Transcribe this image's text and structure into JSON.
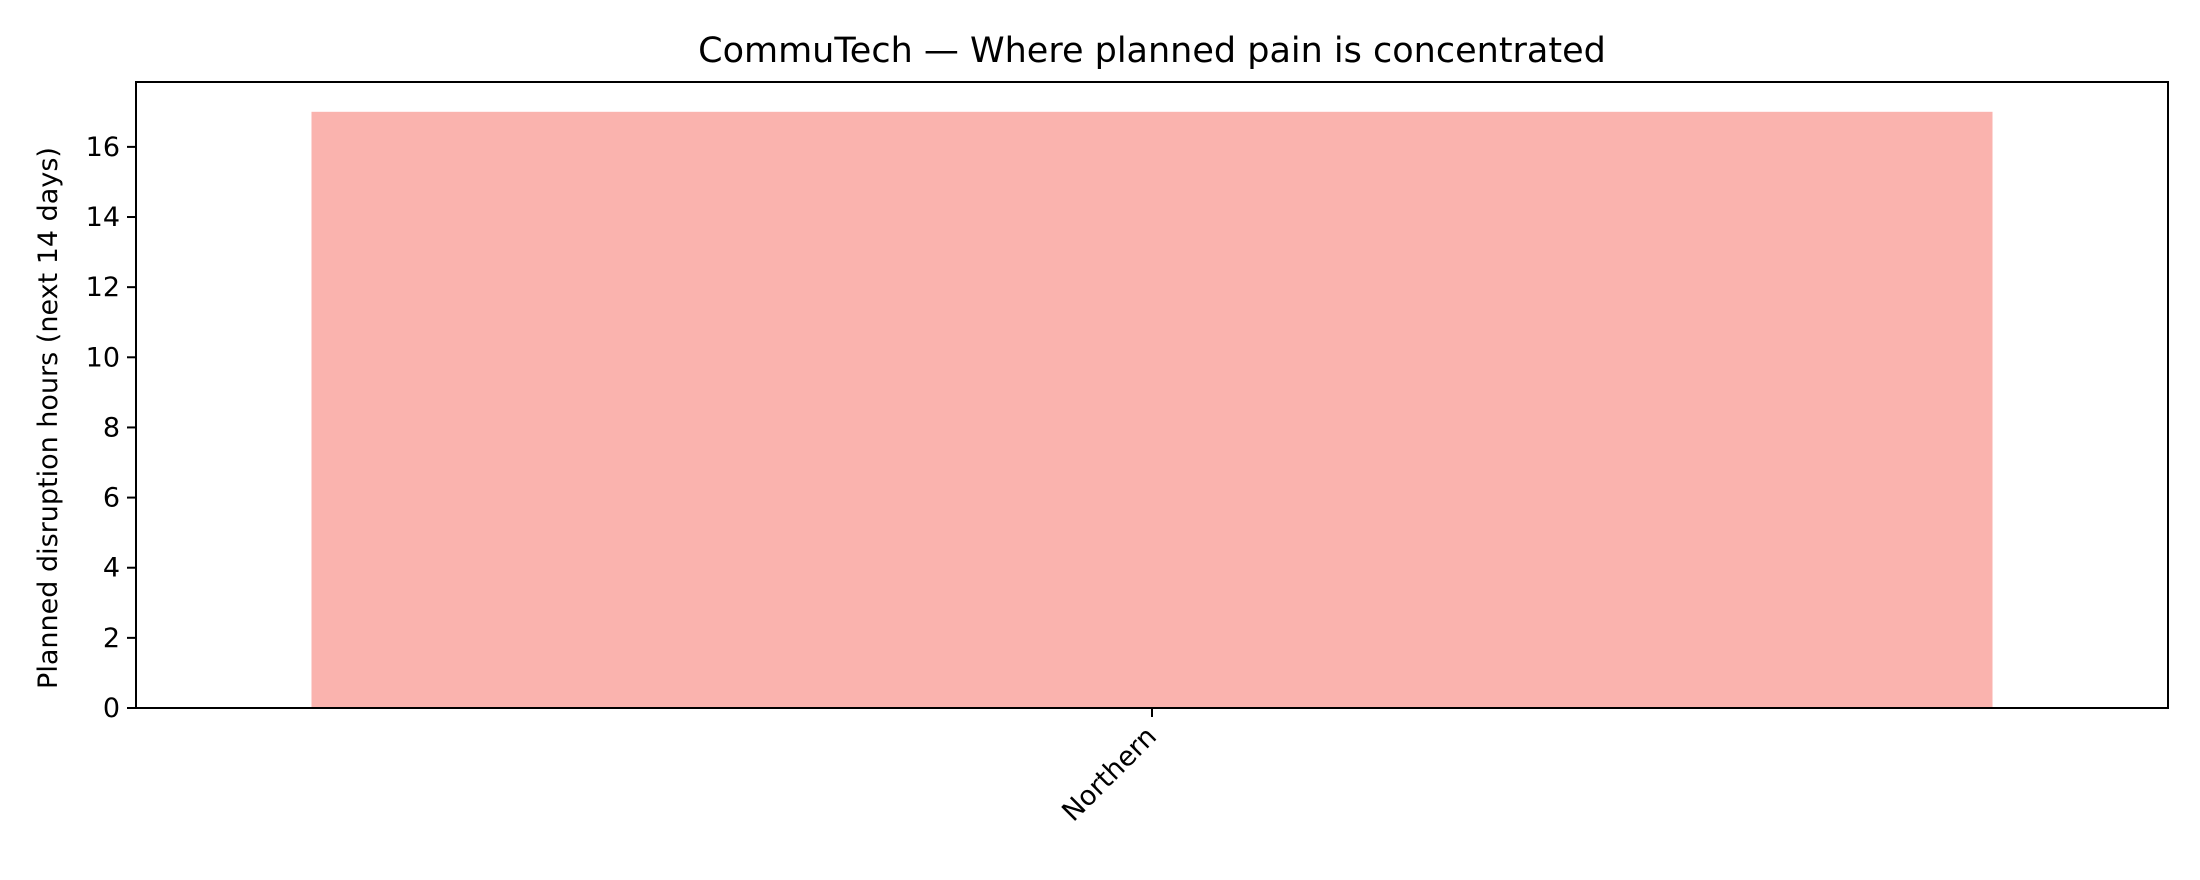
{
  "chart_data": {
    "type": "bar",
    "title": "CommuTech — Where planned pain is concentrated",
    "xlabel": "",
    "ylabel": "Planned disruption hours (next 14 days)",
    "categories": [
      "Northern"
    ],
    "values": [
      17
    ],
    "ylim": [
      0,
      17.85
    ],
    "yticks": [
      0,
      2,
      4,
      6,
      8,
      10,
      12,
      14,
      16
    ],
    "bar_color": "#fab3ae",
    "grid": false,
    "legend": "none"
  }
}
